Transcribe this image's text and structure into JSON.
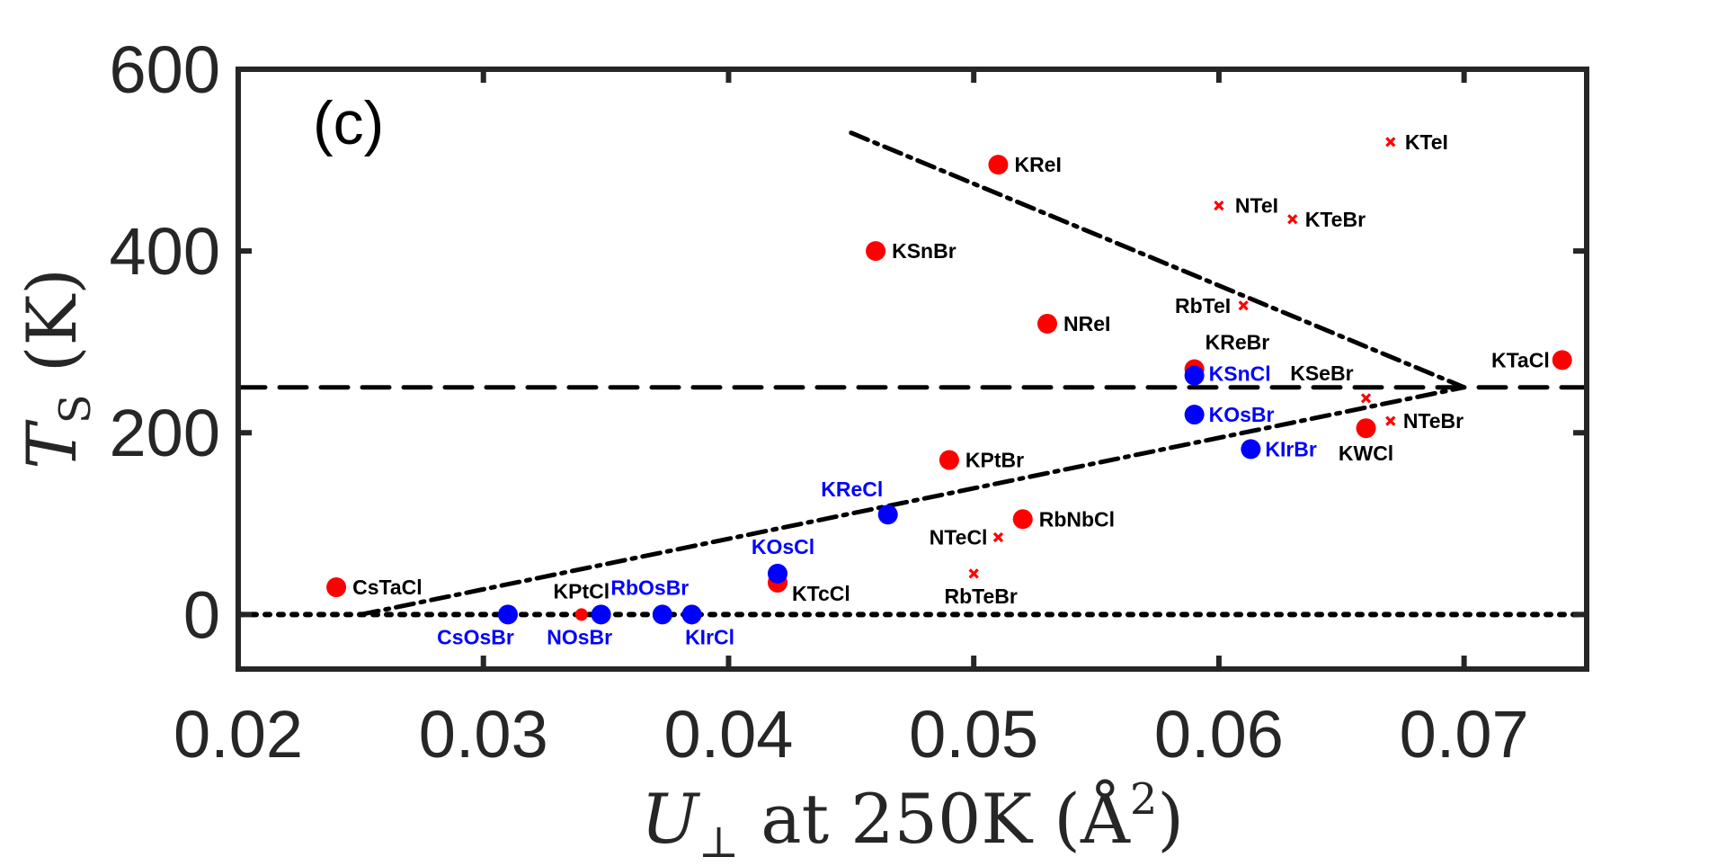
{
  "chart_data": {
    "type": "scatter",
    "panel_label": "(c)",
    "xlabel": {
      "main": "U",
      "sub": "⊥",
      "rest": " at 250K (Å",
      "sup": "2",
      "close": ")"
    },
    "ylabel": {
      "main": "T",
      "sub": "S",
      "rest": " (K)"
    },
    "xlim": [
      0.02,
      0.075
    ],
    "ylim": [
      -60,
      600
    ],
    "xticks": [
      "0.02",
      "0.03",
      "0.04",
      "0.05",
      "0.06",
      "0.07"
    ],
    "yticks": [
      "0",
      "200",
      "400",
      "600"
    ],
    "colors": {
      "red": "#ff0000",
      "blue": "#0000ff",
      "black": "#000000",
      "axis": "#262626"
    },
    "series": [
      {
        "name": "red-circles",
        "marker": "circle",
        "color": "#ff0000",
        "points": [
          {
            "label": "CsTaCl",
            "x": 0.024,
            "y": 30
          },
          {
            "label": "KPtCl",
            "x": 0.034,
            "y": 0
          },
          {
            "label": "KTcCl",
            "x": 0.042,
            "y": 35
          },
          {
            "label": "KSnBr",
            "x": 0.046,
            "y": 400
          },
          {
            "label": "KPtBr",
            "x": 0.049,
            "y": 170
          },
          {
            "label": "KReI",
            "x": 0.051,
            "y": 495
          },
          {
            "label": "RbNbCl",
            "x": 0.052,
            "y": 105
          },
          {
            "label": "NReI",
            "x": 0.053,
            "y": 320
          },
          {
            "label": "KReBr",
            "x": 0.059,
            "y": 270
          },
          {
            "label": "KWCl",
            "x": 0.066,
            "y": 205
          },
          {
            "label": "KTaCl",
            "x": 0.074,
            "y": 280
          }
        ]
      },
      {
        "name": "blue-circles",
        "marker": "circle",
        "color": "#0000ff",
        "points": [
          {
            "label": "CsOsBr",
            "x": 0.031,
            "y": 0
          },
          {
            "label": "NOsBr",
            "x": 0.0348,
            "y": 0
          },
          {
            "label": "RbOsBr",
            "x": 0.0373,
            "y": 0
          },
          {
            "label": "KIrCl",
            "x": 0.0385,
            "y": 0
          },
          {
            "label": "KOsCl",
            "x": 0.042,
            "y": 45
          },
          {
            "label": "KReCl",
            "x": 0.0465,
            "y": 110
          },
          {
            "label": "KSnCl",
            "x": 0.059,
            "y": 263
          },
          {
            "label": "KOsBr",
            "x": 0.059,
            "y": 220
          },
          {
            "label": "KIrBr",
            "x": 0.0613,
            "y": 182
          }
        ]
      },
      {
        "name": "red-crosses",
        "marker": "x",
        "color": "#ff0000",
        "points": [
          {
            "label": "RbTeBr",
            "x": 0.05,
            "y": 45
          },
          {
            "label": "NTeCl",
            "x": 0.051,
            "y": 85
          },
          {
            "label": "NTeI",
            "x": 0.06,
            "y": 450
          },
          {
            "label": "RbTeI",
            "x": 0.061,
            "y": 340
          },
          {
            "label": "KTeBr",
            "x": 0.063,
            "y": 435
          },
          {
            "label": "KSeBr",
            "x": 0.066,
            "y": 238
          },
          {
            "label": "NTeBr",
            "x": 0.067,
            "y": 213
          },
          {
            "label": "KTeI",
            "x": 0.067,
            "y": 520
          }
        ]
      }
    ],
    "reference_lines": [
      {
        "name": "hline-250",
        "style": "dashed",
        "x": [
          0.02,
          0.075
        ],
        "y": [
          250,
          250
        ]
      },
      {
        "name": "hline-0",
        "style": "dotted",
        "x": [
          0.02,
          0.075
        ],
        "y": [
          0,
          0
        ]
      },
      {
        "name": "upper-dashdot",
        "style": "dashdot",
        "x": [
          0.045,
          0.07
        ],
        "y": [
          530,
          250
        ]
      },
      {
        "name": "lower-dashdot",
        "style": "dashdot",
        "x": [
          0.025,
          0.07
        ],
        "y": [
          0,
          250
        ]
      }
    ]
  }
}
